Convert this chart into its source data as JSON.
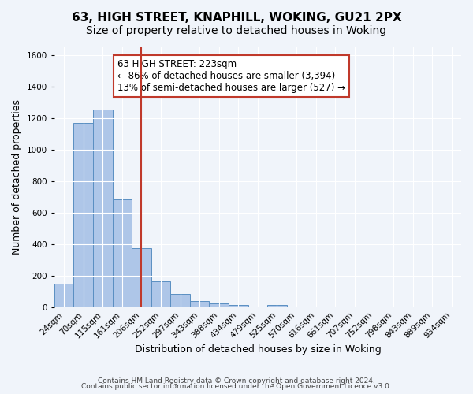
{
  "title": "63, HIGH STREET, KNAPHILL, WOKING, GU21 2PX",
  "subtitle": "Size of property relative to detached houses in Woking",
  "xlabel": "Distribution of detached houses by size in Woking",
  "ylabel": "Number of detached properties",
  "footer_lines": [
    "Contains HM Land Registry data © Crown copyright and database right 2024.",
    "Contains public sector information licensed under the Open Government Licence v3.0."
  ],
  "bin_labels": [
    "24sqm",
    "70sqm",
    "115sqm",
    "161sqm",
    "206sqm",
    "252sqm",
    "297sqm",
    "343sqm",
    "388sqm",
    "434sqm",
    "479sqm",
    "525sqm",
    "570sqm",
    "616sqm",
    "661sqm",
    "707sqm",
    "752sqm",
    "798sqm",
    "843sqm",
    "889sqm",
    "934sqm"
  ],
  "bar_heights": [
    150,
    1170,
    1255,
    685,
    375,
    165,
    85,
    38,
    22,
    15,
    0,
    12,
    0,
    0,
    0,
    0,
    0,
    0,
    0,
    0,
    0
  ],
  "bar_color": "#aec6e8",
  "bar_edge_color": "#5a8fc2",
  "vline_x": 4.5,
  "vline_color": "#c0392b",
  "annotation_text": "63 HIGH STREET: 223sqm\n← 86% of detached houses are smaller (3,394)\n13% of semi-detached houses are larger (527) →",
  "annotation_box_color": "#ffffff",
  "annotation_box_edge": "#c0392b",
  "ylim": [
    0,
    1650
  ],
  "yticks": [
    0,
    200,
    400,
    600,
    800,
    1000,
    1200,
    1400,
    1600
  ],
  "background_color": "#f0f4fa",
  "grid_color": "#ffffff",
  "title_fontsize": 11,
  "subtitle_fontsize": 10,
  "axis_label_fontsize": 9,
  "tick_fontsize": 7.5,
  "annotation_fontsize": 8.5,
  "footer_fontsize": 6.5
}
